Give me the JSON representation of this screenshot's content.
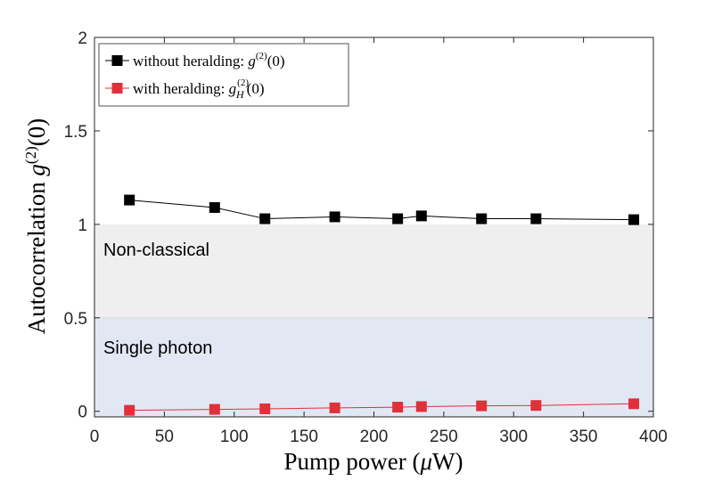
{
  "chart_data": {
    "type": "line",
    "title": "",
    "xlabel_prefix": "Pump power (",
    "xlabel_symbol": "μ",
    "xlabel_suffix": "W)",
    "ylabel_prefix": "Autocorrelation ",
    "ylabel_var": "g",
    "ylabel_sup": "(2)",
    "ylabel_suffix": "(0)",
    "xlim": [
      0,
      400
    ],
    "ylim": [
      -0.03,
      2
    ],
    "xticks": [
      0,
      50,
      100,
      150,
      200,
      250,
      300,
      350,
      400
    ],
    "yticks": [
      0,
      0.5,
      1,
      1.5,
      2
    ],
    "grid": false,
    "legend_position": "top-left",
    "regions": [
      {
        "name": "non-classical",
        "label": "Non-classical",
        "from": 0.5,
        "to": 1.0,
        "color": "#efefef"
      },
      {
        "name": "single-photon",
        "label": "Single photon",
        "from": -0.03,
        "to": 0.5,
        "color": "#e2e7f4"
      }
    ],
    "series": [
      {
        "name": "without heralding",
        "legend_text": "without heralding: ",
        "legend_var": "g",
        "legend_sup": "(2)",
        "legend_sub": "",
        "legend_tail": "(0)",
        "color": "#000000",
        "x": [
          25,
          86,
          122,
          172,
          217,
          234,
          277,
          316,
          386
        ],
        "values": [
          1.13,
          1.09,
          1.03,
          1.04,
          1.03,
          1.045,
          1.03,
          1.03,
          1.025
        ]
      },
      {
        "name": "with heralding",
        "legend_text": "with heralding: ",
        "legend_var": "g",
        "legend_sup": "(2)",
        "legend_sub": "H",
        "legend_tail": "(0)",
        "color": "#e0303a",
        "x": [
          25,
          86,
          122,
          172,
          217,
          234,
          277,
          316,
          386
        ],
        "values": [
          0.005,
          0.01,
          0.013,
          0.018,
          0.022,
          0.025,
          0.029,
          0.031,
          0.04
        ]
      }
    ]
  }
}
